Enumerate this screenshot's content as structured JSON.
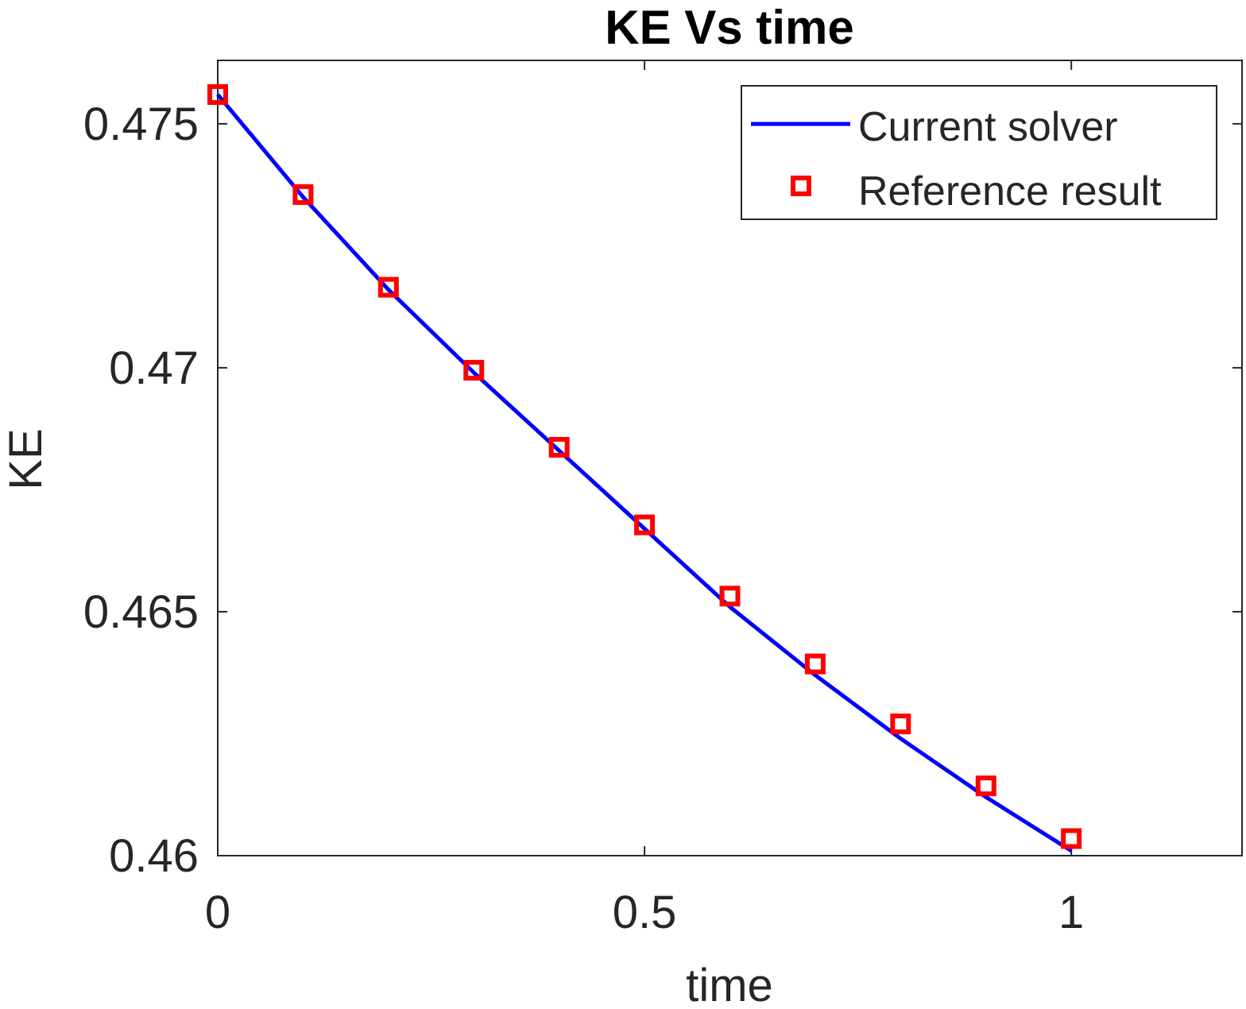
{
  "chart_data": {
    "type": "line",
    "title": "KE Vs time",
    "xlabel": "time",
    "ylabel": "KE",
    "xlim": [
      0,
      1.2
    ],
    "ylim": [
      0.46,
      0.4763
    ],
    "x_ticks": [
      {
        "value": 0,
        "label": "0"
      },
      {
        "value": 0.5,
        "label": "0.5"
      },
      {
        "value": 1,
        "label": "1"
      }
    ],
    "y_ticks": [
      {
        "value": 0.46,
        "label": "0.46"
      },
      {
        "value": 0.465,
        "label": "0.465"
      },
      {
        "value": 0.47,
        "label": "0.47"
      },
      {
        "value": 0.475,
        "label": "0.475"
      }
    ],
    "grid": false,
    "legend_position": "top-right",
    "series": [
      {
        "name": "Current solver",
        "kind": "line",
        "color": "#0000ff",
        "x": [
          0,
          0.1,
          0.2,
          0.3,
          0.4,
          0.5,
          0.6,
          0.7,
          0.8,
          0.9,
          1.0
        ],
        "y": [
          0.4756,
          0.4735,
          0.4716,
          0.4699,
          0.4683,
          0.4667,
          0.4651,
          0.4637,
          0.4624,
          0.4612,
          0.4601
        ]
      },
      {
        "name": "Reference result",
        "kind": "marker",
        "marker": "square",
        "color": "#ff0000",
        "x": [
          0,
          0.1,
          0.2,
          0.3,
          0.4,
          0.5,
          0.6,
          0.7,
          0.8,
          0.9,
          1.0
        ],
        "y": [
          0.4756,
          0.47355,
          0.47165,
          0.46995,
          0.46837,
          0.46678,
          0.46532,
          0.46393,
          0.4627,
          0.46143,
          0.46035
        ]
      }
    ]
  }
}
